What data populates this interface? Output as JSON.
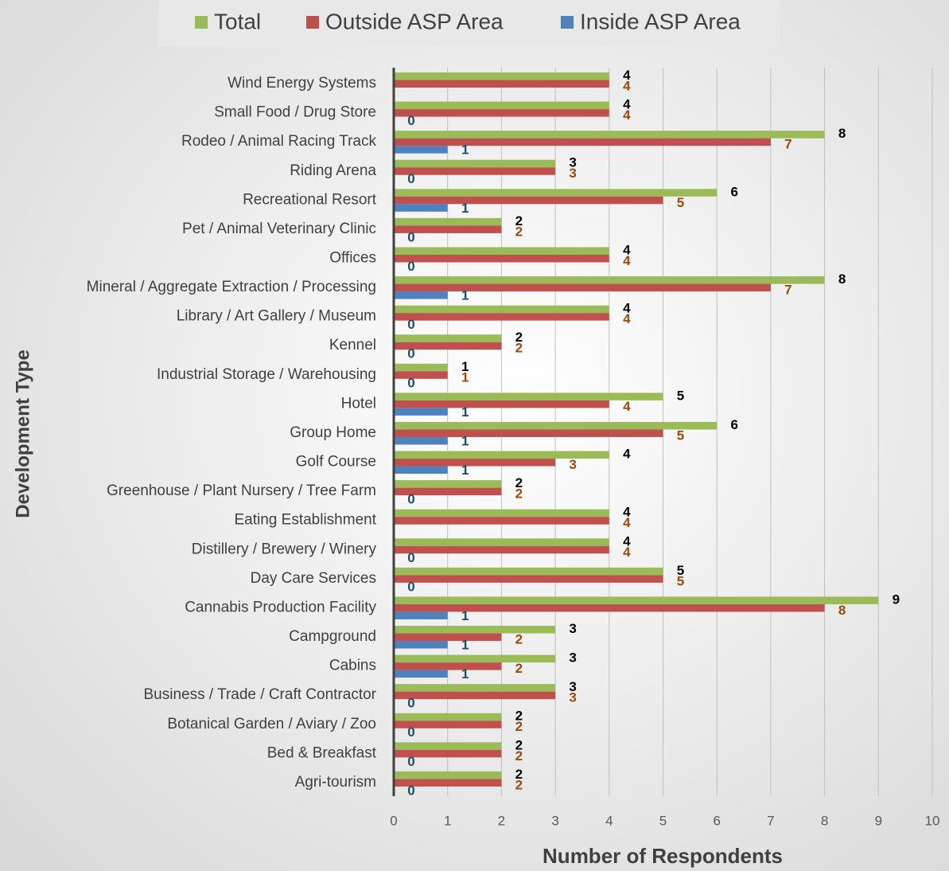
{
  "chart_data": {
    "type": "bar",
    "orientation": "horizontal",
    "x_label": "Number of Respondents",
    "y_label": "Development Type",
    "categories": [
      "Wind Energy Systems",
      "Small Food / Drug Store",
      "Rodeo / Animal Racing Track",
      "Riding Arena",
      "Recreational Resort",
      "Pet / Animal Veterinary Clinic",
      "Offices",
      "Mineral / Aggregate Extraction / Processing",
      "Library / Art Gallery / Museum",
      "Kennel",
      "Industrial Storage / Warehousing",
      "Hotel",
      "Group Home",
      "Golf Course",
      "Greenhouse / Plant Nursery / Tree Farm",
      "Eating Establishment",
      "Distillery / Brewery / Winery",
      "Day Care Services",
      "Cannabis Production Facility",
      "Campground",
      "Cabins",
      "Business / Trade / Craft Contractor",
      "Botanical Garden / Aviary / Zoo",
      "Bed & Breakfast",
      "Agri-tourism"
    ],
    "series": [
      {
        "name": "Total",
        "color": "#9bbb59",
        "label_color": "#000000",
        "values": [
          4,
          4,
          8,
          3,
          6,
          2,
          4,
          8,
          4,
          2,
          1,
          5,
          6,
          4,
          2,
          4,
          4,
          5,
          9,
          3,
          3,
          3,
          2,
          2,
          2
        ]
      },
      {
        "name": "Outside ASP Area",
        "color": "#c0504d",
        "label_color": "#9c4a0c",
        "values": [
          4,
          4,
          7,
          3,
          5,
          2,
          4,
          7,
          4,
          2,
          1,
          4,
          5,
          3,
          2,
          4,
          4,
          5,
          8,
          2,
          2,
          3,
          2,
          2,
          2
        ]
      },
      {
        "name": "Inside ASP Area",
        "color": "#4f81bd",
        "label_color": "#1f4e66",
        "values": [
          null,
          0,
          1,
          0,
          1,
          0,
          0,
          1,
          0,
          0,
          0,
          1,
          1,
          1,
          0,
          null,
          0,
          0,
          1,
          1,
          1,
          0,
          0,
          0,
          0
        ]
      }
    ],
    "xlim": [
      0,
      10
    ],
    "xticks": [
      0,
      1,
      2,
      3,
      4,
      5,
      6,
      7,
      8,
      9,
      10
    ],
    "grid": true,
    "legend": "top"
  }
}
